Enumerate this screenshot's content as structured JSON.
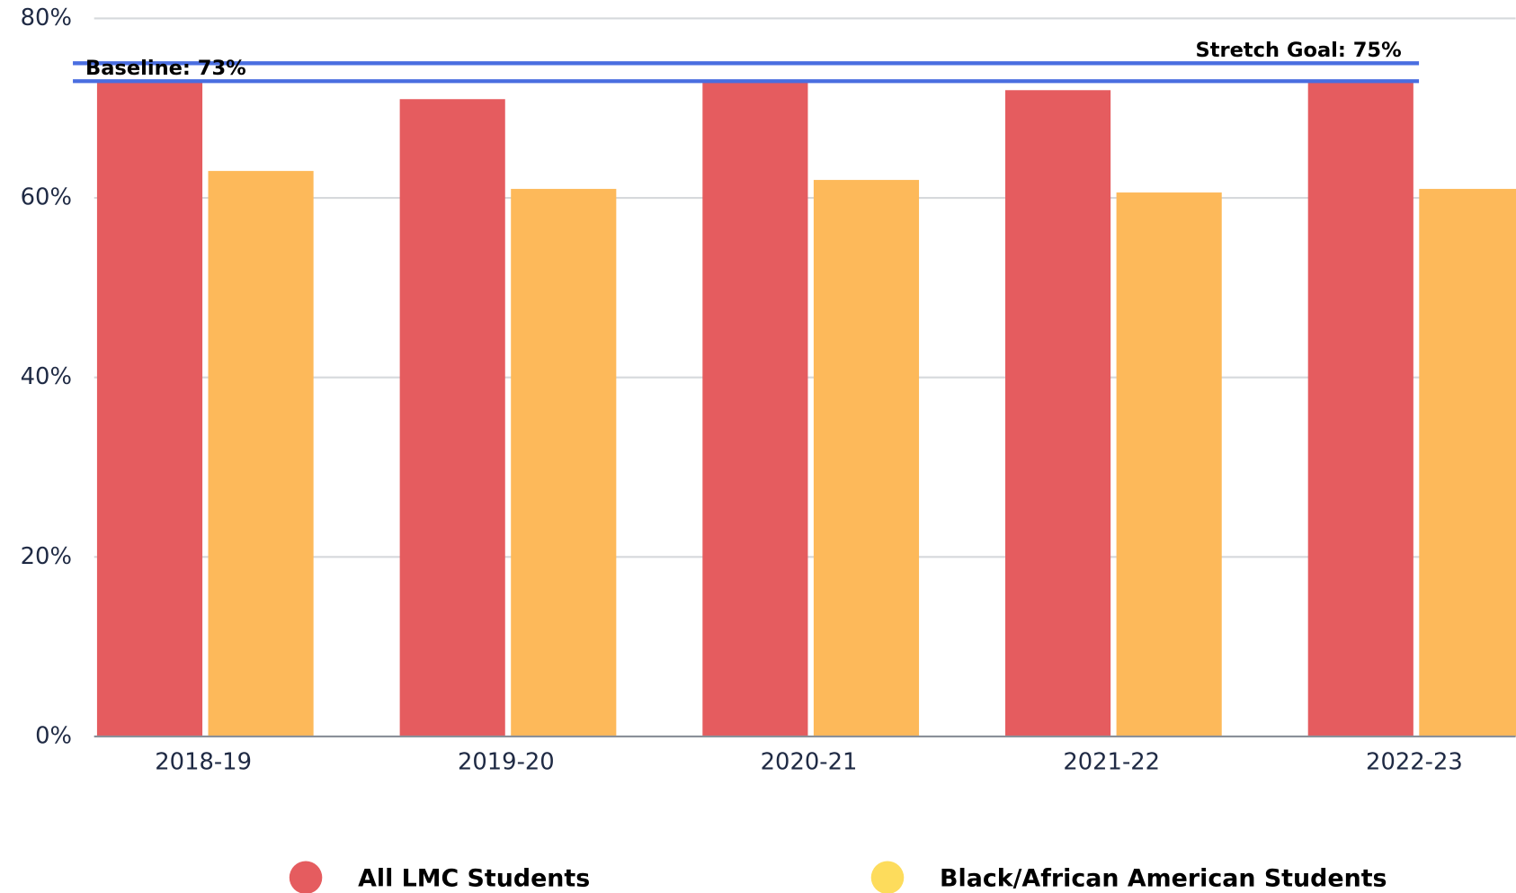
{
  "chart_data": {
    "type": "bar",
    "categories": [
      "2018-19",
      "2019-20",
      "2020-21",
      "2021-22",
      "2022-23"
    ],
    "series": [
      {
        "name": "All LMC Students",
        "color": "#e55c5f",
        "legend_color": "#e55c5f",
        "values": [
          73,
          71,
          73,
          72,
          73
        ]
      },
      {
        "name": "Black/African American Students",
        "color": "#fdb95a",
        "legend_color": "#fddc5c",
        "values": [
          63,
          61,
          62,
          60.6,
          61
        ]
      }
    ],
    "ylim": [
      0,
      80
    ],
    "yticks": [
      {
        "value": 0,
        "label": "0%"
      },
      {
        "value": 20,
        "label": "20%"
      },
      {
        "value": 40,
        "label": "40%"
      },
      {
        "value": 60,
        "label": "60%"
      },
      {
        "value": 80,
        "label": "80%"
      }
    ],
    "grid": true,
    "reference_lines": [
      {
        "label": "Stretch Goal: 75%",
        "value": 75,
        "color": "#4a6ee0"
      },
      {
        "label": "Baseline: 73%",
        "value": 73,
        "color": "#4a6ee0"
      }
    ],
    "legend": "bottom"
  }
}
